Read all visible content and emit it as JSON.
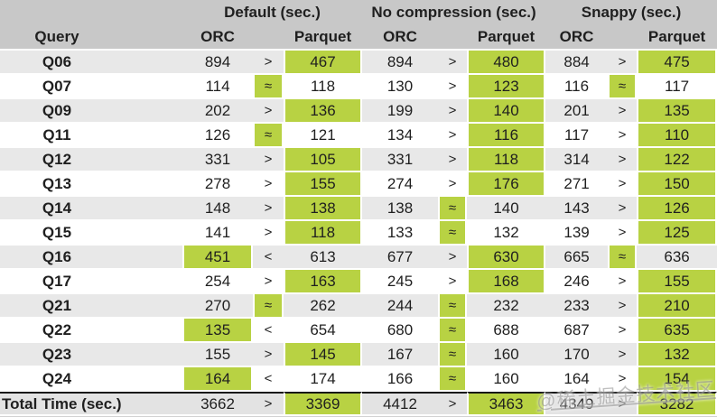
{
  "chart_data": {
    "type": "table",
    "query_header": "Query",
    "groups": [
      {
        "label": "Default (sec.)",
        "orc_header": "ORC",
        "parquet_header": "Parquet"
      },
      {
        "label": "No compression (sec.)",
        "orc_header": "ORC",
        "parquet_header": "Parquet"
      },
      {
        "label": "Snappy (sec.)",
        "orc_header": "ORC",
        "parquet_header": "Parquet"
      }
    ],
    "rows": [
      {
        "query": "Q06",
        "groups": [
          {
            "orc": 894,
            "cmp": ">",
            "parquet": 467,
            "hl": "parquet"
          },
          {
            "orc": 894,
            "cmp": ">",
            "parquet": 480,
            "hl": "parquet"
          },
          {
            "orc": 884,
            "cmp": ">",
            "parquet": 475,
            "hl": "parquet"
          }
        ]
      },
      {
        "query": "Q07",
        "groups": [
          {
            "orc": 114,
            "cmp": "≈",
            "parquet": 118,
            "hl": "cmp"
          },
          {
            "orc": 130,
            "cmp": ">",
            "parquet": 123,
            "hl": "parquet"
          },
          {
            "orc": 116,
            "cmp": "≈",
            "parquet": 117,
            "hl": "cmp"
          }
        ]
      },
      {
        "query": "Q09",
        "groups": [
          {
            "orc": 202,
            "cmp": ">",
            "parquet": 136,
            "hl": "parquet"
          },
          {
            "orc": 199,
            "cmp": ">",
            "parquet": 140,
            "hl": "parquet"
          },
          {
            "orc": 201,
            "cmp": ">",
            "parquet": 135,
            "hl": "parquet"
          }
        ]
      },
      {
        "query": "Q11",
        "groups": [
          {
            "orc": 126,
            "cmp": "≈",
            "parquet": 121,
            "hl": "cmp"
          },
          {
            "orc": 134,
            "cmp": ">",
            "parquet": 116,
            "hl": "parquet"
          },
          {
            "orc": 117,
            "cmp": ">",
            "parquet": 110,
            "hl": "parquet"
          }
        ]
      },
      {
        "query": "Q12",
        "groups": [
          {
            "orc": 331,
            "cmp": ">",
            "parquet": 105,
            "hl": "parquet"
          },
          {
            "orc": 331,
            "cmp": ">",
            "parquet": 118,
            "hl": "parquet"
          },
          {
            "orc": 314,
            "cmp": ">",
            "parquet": 122,
            "hl": "parquet"
          }
        ]
      },
      {
        "query": "Q13",
        "groups": [
          {
            "orc": 278,
            "cmp": ">",
            "parquet": 155,
            "hl": "parquet"
          },
          {
            "orc": 274,
            "cmp": ">",
            "parquet": 176,
            "hl": "parquet"
          },
          {
            "orc": 271,
            "cmp": ">",
            "parquet": 150,
            "hl": "parquet"
          }
        ]
      },
      {
        "query": "Q14",
        "groups": [
          {
            "orc": 148,
            "cmp": ">",
            "parquet": 138,
            "hl": "parquet"
          },
          {
            "orc": 138,
            "cmp": "≈",
            "parquet": 140,
            "hl": "cmp"
          },
          {
            "orc": 143,
            "cmp": ">",
            "parquet": 126,
            "hl": "parquet"
          }
        ]
      },
      {
        "query": "Q15",
        "groups": [
          {
            "orc": 141,
            "cmp": ">",
            "parquet": 118,
            "hl": "parquet"
          },
          {
            "orc": 133,
            "cmp": "≈",
            "parquet": 132,
            "hl": "cmp"
          },
          {
            "orc": 139,
            "cmp": ">",
            "parquet": 125,
            "hl": "parquet"
          }
        ]
      },
      {
        "query": "Q16",
        "groups": [
          {
            "orc": 451,
            "cmp": "<",
            "parquet": 613,
            "hl": "orc"
          },
          {
            "orc": 677,
            "cmp": ">",
            "parquet": 630,
            "hl": "parquet"
          },
          {
            "orc": 665,
            "cmp": "≈",
            "parquet": 636,
            "hl": "cmp"
          }
        ]
      },
      {
        "query": "Q17",
        "groups": [
          {
            "orc": 254,
            "cmp": ">",
            "parquet": 163,
            "hl": "parquet"
          },
          {
            "orc": 245,
            "cmp": ">",
            "parquet": 168,
            "hl": "parquet"
          },
          {
            "orc": 246,
            "cmp": ">",
            "parquet": 155,
            "hl": "parquet"
          }
        ]
      },
      {
        "query": "Q21",
        "groups": [
          {
            "orc": 270,
            "cmp": "≈",
            "parquet": 262,
            "hl": "cmp"
          },
          {
            "orc": 244,
            "cmp": "≈",
            "parquet": 232,
            "hl": "cmp"
          },
          {
            "orc": 233,
            "cmp": ">",
            "parquet": 210,
            "hl": "parquet"
          }
        ]
      },
      {
        "query": "Q22",
        "groups": [
          {
            "orc": 135,
            "cmp": "<",
            "parquet": 654,
            "hl": "orc"
          },
          {
            "orc": 680,
            "cmp": "≈",
            "parquet": 688,
            "hl": "cmp"
          },
          {
            "orc": 687,
            "cmp": ">",
            "parquet": 635,
            "hl": "parquet"
          }
        ]
      },
      {
        "query": "Q23",
        "groups": [
          {
            "orc": 155,
            "cmp": ">",
            "parquet": 145,
            "hl": "parquet"
          },
          {
            "orc": 167,
            "cmp": "≈",
            "parquet": 160,
            "hl": "cmp"
          },
          {
            "orc": 170,
            "cmp": ">",
            "parquet": 132,
            "hl": "parquet"
          }
        ]
      },
      {
        "query": "Q24",
        "groups": [
          {
            "orc": 164,
            "cmp": "<",
            "parquet": 174,
            "hl": "orc"
          },
          {
            "orc": 166,
            "cmp": "≈",
            "parquet": 160,
            "hl": "cmp"
          },
          {
            "orc": 164,
            "cmp": ">",
            "parquet": 154,
            "hl": "parquet"
          }
        ]
      }
    ],
    "total": {
      "label": "Total Time (sec.)",
      "groups": [
        {
          "orc": 3662,
          "cmp": ">",
          "parquet": 3369,
          "hl": "parquet"
        },
        {
          "orc": 4412,
          "cmp": ">",
          "parquet": 3463,
          "hl": "parquet"
        },
        {
          "orc": 4349,
          "cmp": ">",
          "parquet": 3282,
          "hl": "parquet"
        }
      ]
    }
  },
  "watermark": "@稀土掘金技术社区",
  "colors": {
    "highlight_green": "#b8d243",
    "header_gray": "#c8c8c8",
    "stripe_gray": "#e8e8e8",
    "total_gray": "#e3e3e3",
    "text": "#1f1f1f"
  }
}
